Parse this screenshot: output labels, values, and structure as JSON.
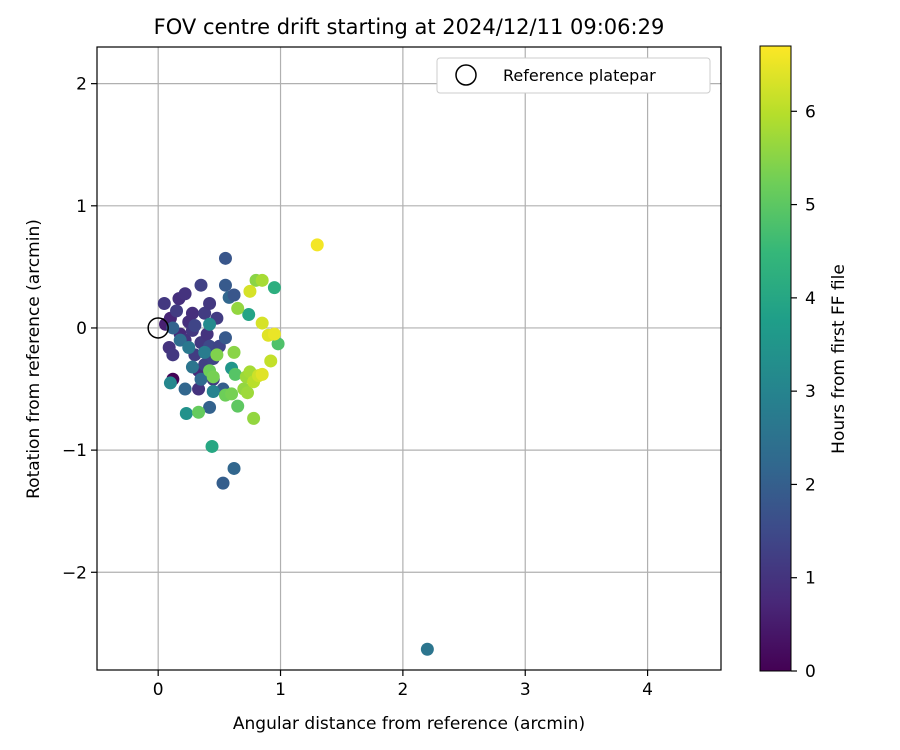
{
  "chart_data": {
    "type": "scatter",
    "title": "FOV centre drift starting at 2024/12/11 09:06:29",
    "xlabel": "Angular distance from reference (arcmin)",
    "ylabel": "Rotation from reference (arcmin)",
    "xlim": [
      -0.5,
      4.6
    ],
    "ylim": [
      -2.8,
      2.3
    ],
    "xticks": [
      0,
      1,
      2,
      3,
      4
    ],
    "yticks": [
      -2,
      -1,
      0,
      1,
      2
    ],
    "xtick_labels": [
      "0",
      "1",
      "2",
      "3",
      "4"
    ],
    "ytick_labels": [
      "−2",
      "−1",
      "0",
      "1",
      "2"
    ],
    "grid": true,
    "legend": {
      "position": "top-right",
      "entries": [
        "Reference platepar"
      ]
    },
    "colorbar": {
      "label": "Hours from first FF file",
      "colormap": "viridis",
      "range": [
        0,
        6.7
      ],
      "ticks": [
        0,
        1,
        2,
        3,
        4,
        5,
        6
      ],
      "tick_labels": [
        "0",
        "1",
        "2",
        "3",
        "4",
        "5",
        "6"
      ]
    },
    "reference_point": {
      "x": 0,
      "y": 0,
      "name": "Reference platepar"
    },
    "points": [
      {
        "x": 0.12,
        "y": -0.42,
        "t": 0.05
      },
      {
        "x": 0.06,
        "y": 0.03,
        "t": 0.6
      },
      {
        "x": 0.1,
        "y": 0.08,
        "t": 0.7
      },
      {
        "x": 0.09,
        "y": -0.16,
        "t": 1.0
      },
      {
        "x": 0.12,
        "y": -0.22,
        "t": 1.1
      },
      {
        "x": 0.05,
        "y": 0.2,
        "t": 1.1
      },
      {
        "x": 0.15,
        "y": 0.14,
        "t": 1.2
      },
      {
        "x": 0.17,
        "y": 0.24,
        "t": 0.9
      },
      {
        "x": 0.22,
        "y": 0.28,
        "t": 1.0
      },
      {
        "x": 0.18,
        "y": -0.05,
        "t": 0.8
      },
      {
        "x": 0.22,
        "y": -0.1,
        "t": 1.0
      },
      {
        "x": 0.25,
        "y": 0.05,
        "t": 0.9
      },
      {
        "x": 0.28,
        "y": -0.02,
        "t": 1.1
      },
      {
        "x": 0.28,
        "y": 0.12,
        "t": 0.9
      },
      {
        "x": 0.3,
        "y": 0.02,
        "t": 1.4
      },
      {
        "x": 0.3,
        "y": -0.22,
        "t": 1.2
      },
      {
        "x": 0.33,
        "y": -0.35,
        "t": 0.8
      },
      {
        "x": 0.35,
        "y": 0.35,
        "t": 1.3
      },
      {
        "x": 0.35,
        "y": -0.12,
        "t": 1.1
      },
      {
        "x": 0.33,
        "y": -0.5,
        "t": 1.0
      },
      {
        "x": 0.38,
        "y": 0.12,
        "t": 1.2
      },
      {
        "x": 0.38,
        "y": -0.3,
        "t": 1.3
      },
      {
        "x": 0.4,
        "y": -0.05,
        "t": 1.0
      },
      {
        "x": 0.42,
        "y": 0.2,
        "t": 1.1
      },
      {
        "x": 0.42,
        "y": -0.15,
        "t": 1.5
      },
      {
        "x": 0.45,
        "y": -0.42,
        "t": 1.2
      },
      {
        "x": 0.45,
        "y": -0.25,
        "t": 1.4
      },
      {
        "x": 0.48,
        "y": 0.08,
        "t": 1.2
      },
      {
        "x": 0.5,
        "y": -0.15,
        "t": 1.4
      },
      {
        "x": 0.55,
        "y": 0.57,
        "t": 1.8
      },
      {
        "x": 0.55,
        "y": 0.35,
        "t": 1.9
      },
      {
        "x": 0.58,
        "y": 0.25,
        "t": 2.2
      },
      {
        "x": 0.62,
        "y": 0.27,
        "t": 1.8
      },
      {
        "x": 0.55,
        "y": -0.08,
        "t": 1.9
      },
      {
        "x": 0.53,
        "y": -0.5,
        "t": 2.0
      },
      {
        "x": 0.42,
        "y": -0.65,
        "t": 2.1
      },
      {
        "x": 0.22,
        "y": -0.5,
        "t": 2.2
      },
      {
        "x": 0.12,
        "y": 0.0,
        "t": 2.1
      },
      {
        "x": 0.18,
        "y": -0.1,
        "t": 2.4
      },
      {
        "x": 0.25,
        "y": -0.16,
        "t": 2.7
      },
      {
        "x": 0.28,
        "y": -0.32,
        "t": 2.6
      },
      {
        "x": 0.35,
        "y": -0.42,
        "t": 2.3
      },
      {
        "x": 0.38,
        "y": -0.2,
        "t": 2.8
      },
      {
        "x": 0.42,
        "y": 0.03,
        "t": 3.2
      },
      {
        "x": 0.45,
        "y": -0.52,
        "t": 3.0
      },
      {
        "x": 0.1,
        "y": -0.45,
        "t": 3.1
      },
      {
        "x": 0.23,
        "y": -0.7,
        "t": 3.4
      },
      {
        "x": 0.6,
        "y": -0.33,
        "t": 3.5
      },
      {
        "x": 0.62,
        "y": -1.15,
        "t": 2.2
      },
      {
        "x": 0.53,
        "y": -1.27,
        "t": 2.0
      },
      {
        "x": 2.2,
        "y": -2.63,
        "t": 2.6
      },
      {
        "x": 0.44,
        "y": -0.97,
        "t": 4.0
      },
      {
        "x": 0.74,
        "y": 0.11,
        "t": 3.9
      },
      {
        "x": 0.95,
        "y": 0.33,
        "t": 4.2
      },
      {
        "x": 0.98,
        "y": -0.13,
        "t": 4.8
      },
      {
        "x": 0.63,
        "y": -0.38,
        "t": 4.9
      },
      {
        "x": 0.65,
        "y": -0.64,
        "t": 5.0
      },
      {
        "x": 0.33,
        "y": -0.69,
        "t": 5.1
      },
      {
        "x": 0.42,
        "y": -0.35,
        "t": 5.2
      },
      {
        "x": 0.45,
        "y": -0.4,
        "t": 5.3
      },
      {
        "x": 0.48,
        "y": -0.22,
        "t": 5.4
      },
      {
        "x": 0.55,
        "y": -0.55,
        "t": 5.2
      },
      {
        "x": 0.6,
        "y": -0.54,
        "t": 5.3
      },
      {
        "x": 0.62,
        "y": -0.2,
        "t": 5.5
      },
      {
        "x": 0.65,
        "y": 0.16,
        "t": 5.6
      },
      {
        "x": 0.7,
        "y": -0.5,
        "t": 5.6
      },
      {
        "x": 0.72,
        "y": -0.4,
        "t": 5.7
      },
      {
        "x": 0.73,
        "y": -0.53,
        "t": 5.7
      },
      {
        "x": 0.75,
        "y": -0.36,
        "t": 5.8
      },
      {
        "x": 0.78,
        "y": -0.74,
        "t": 5.6
      },
      {
        "x": 0.8,
        "y": 0.39,
        "t": 5.5
      },
      {
        "x": 0.85,
        "y": 0.39,
        "t": 5.8
      },
      {
        "x": 0.78,
        "y": -0.44,
        "t": 6.0
      },
      {
        "x": 0.82,
        "y": -0.39,
        "t": 6.2
      },
      {
        "x": 0.85,
        "y": -0.38,
        "t": 6.4
      },
      {
        "x": 0.75,
        "y": 0.3,
        "t": 6.3
      },
      {
        "x": 0.85,
        "y": 0.04,
        "t": 6.3
      },
      {
        "x": 0.9,
        "y": -0.06,
        "t": 6.4
      },
      {
        "x": 0.95,
        "y": -0.05,
        "t": 6.5
      },
      {
        "x": 0.92,
        "y": -0.27,
        "t": 6.1
      },
      {
        "x": 1.3,
        "y": 0.68,
        "t": 6.6
      }
    ]
  }
}
